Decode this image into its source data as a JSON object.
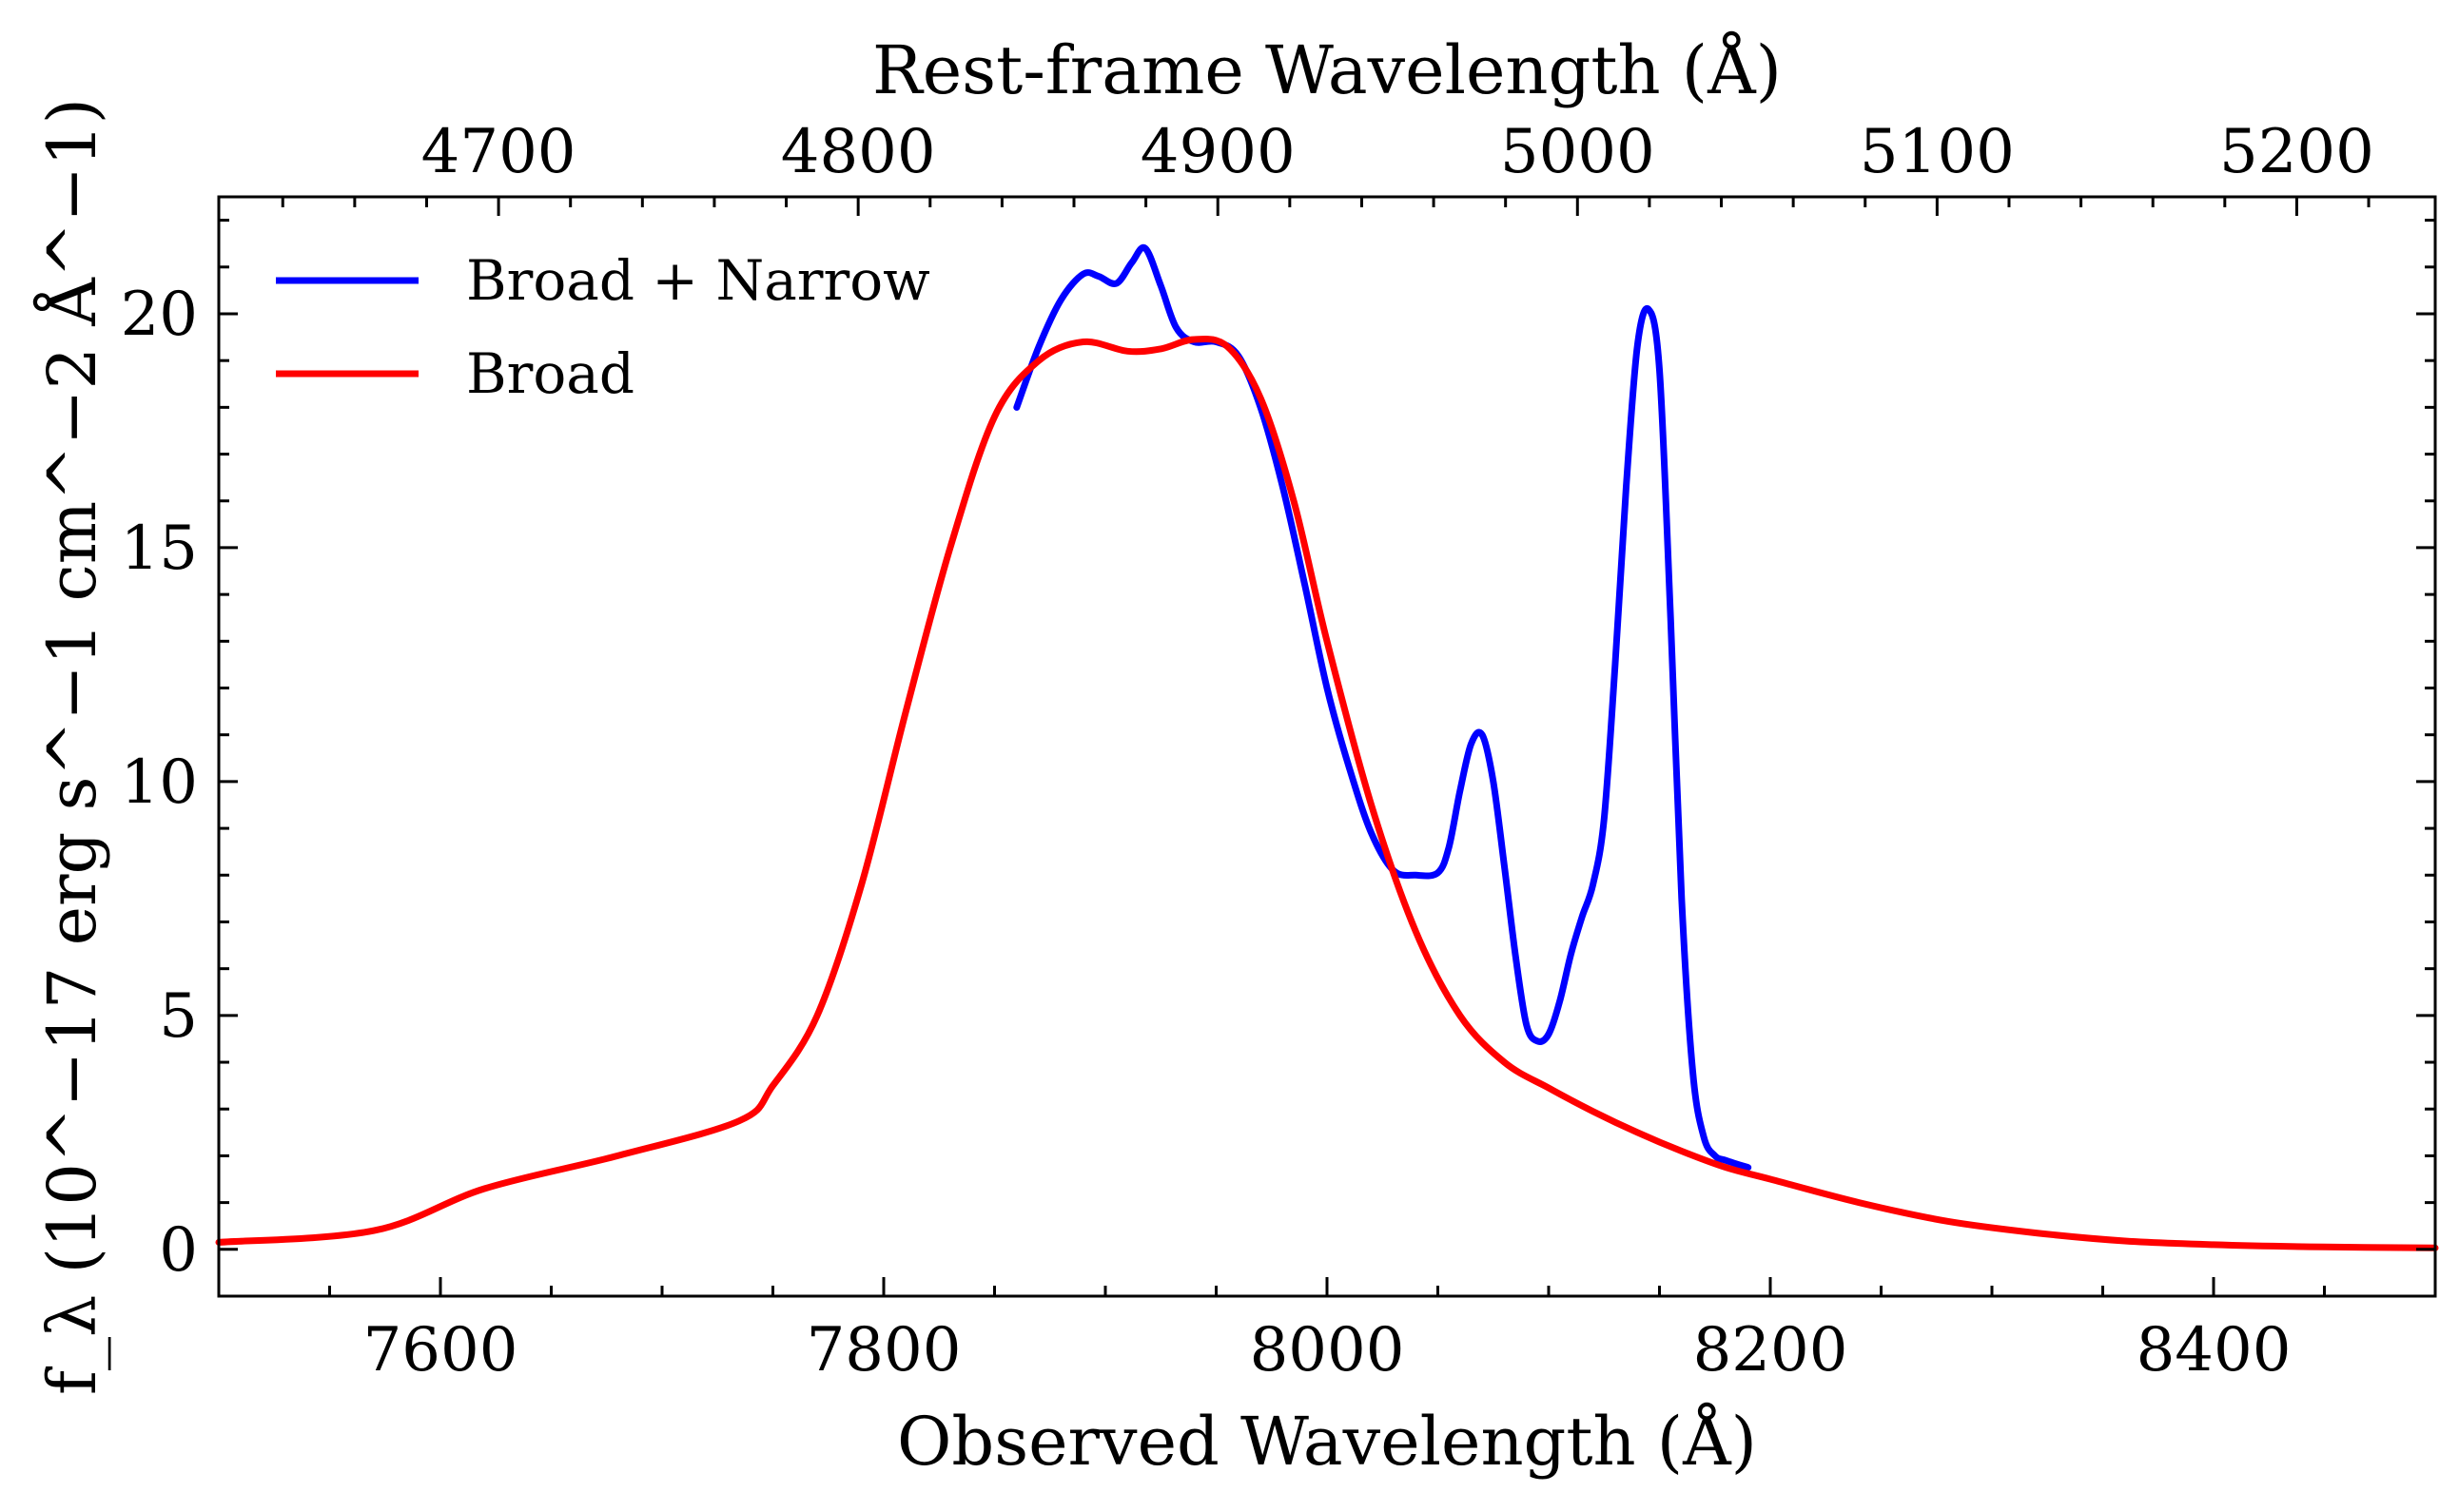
{
  "chart_data": {
    "type": "line",
    "xlabel": "Observed Wavelength (Å)",
    "xlabel_top": "Rest-frame Wavelength (Å)",
    "ylabel": "f_λ (10^−17 erg s^−1 cm^−2 Å^−1)",
    "xlim": [
      7500,
      8500
    ],
    "ylim": [
      -1,
      22.5
    ],
    "x_ticks": [
      7600,
      7800,
      8000,
      8200,
      8400
    ],
    "x_tick_labels": [
      "7600",
      "7800",
      "8000",
      "8200",
      "8400"
    ],
    "y_ticks": [
      0,
      5,
      10,
      15,
      20
    ],
    "y_tick_labels": [
      "0",
      "5",
      "10",
      "15",
      "20"
    ],
    "top_axis": {
      "conversion_factor": 1.6226,
      "ticks": [
        4700,
        4800,
        4900,
        5000,
        5100,
        5200
      ],
      "tick_labels": [
        "4700",
        "4800",
        "4900",
        "5000",
        "5100",
        "5200"
      ]
    },
    "grid": false,
    "legend_position": "top-left",
    "series": [
      {
        "name": "Broad + Narrow",
        "color": "#0000ff",
        "x": [
          7860,
          7870,
          7880,
          7890,
          7897,
          7905,
          7912,
          7918,
          7925,
          7932,
          7940,
          7950,
          7960,
          7970,
          7980,
          7990,
          8000,
          8010,
          8020,
          8030,
          8040,
          8050,
          8055,
          8060,
          8065,
          8070,
          8075,
          8080,
          8085,
          8090,
          8095,
          8100,
          8105,
          8110,
          8115,
          8120,
          8125,
          8130,
          8135,
          8140,
          8145,
          8150,
          8155,
          8160,
          8165,
          8170,
          8175,
          8180,
          8190
        ],
        "y": [
          18.0,
          19.3,
          20.3,
          20.85,
          20.8,
          20.65,
          21.1,
          21.4,
          20.6,
          19.7,
          19.4,
          19.4,
          19.1,
          18.0,
          16.3,
          14.2,
          12.0,
          10.3,
          8.9,
          8.1,
          8.0,
          8.05,
          8.6,
          9.8,
          10.8,
          11.0,
          10.0,
          8.2,
          6.3,
          4.8,
          4.45,
          4.6,
          5.3,
          6.3,
          7.1,
          7.8,
          9.2,
          12.5,
          16.3,
          19.3,
          20.1,
          18.8,
          13.5,
          7.5,
          3.8,
          2.4,
          2.0,
          1.9,
          1.75
        ]
      },
      {
        "name": "Broad",
        "color": "#ff0000",
        "x": [
          7500,
          7570,
          7620,
          7680,
          7735,
          7750,
          7770,
          7790,
          7810,
          7830,
          7850,
          7870,
          7890,
          7910,
          7925,
          7940,
          7955,
          7970,
          7985,
          8000,
          8020,
          8040,
          8060,
          8080,
          8100,
          8120,
          8140,
          8160,
          8180,
          8200,
          8240,
          8280,
          8320,
          8360,
          8400,
          8450,
          8500
        ],
        "y": [
          0.15,
          0.4,
          1.3,
          2.0,
          2.75,
          3.5,
          5.0,
          7.8,
          11.5,
          15.0,
          17.8,
          19.0,
          19.4,
          19.2,
          19.25,
          19.45,
          19.3,
          18.2,
          16.0,
          13.0,
          9.5,
          6.8,
          5.0,
          4.0,
          3.45,
          2.95,
          2.5,
          2.1,
          1.75,
          1.5,
          1.0,
          0.6,
          0.35,
          0.18,
          0.1,
          0.05,
          0.03
        ]
      }
    ]
  }
}
